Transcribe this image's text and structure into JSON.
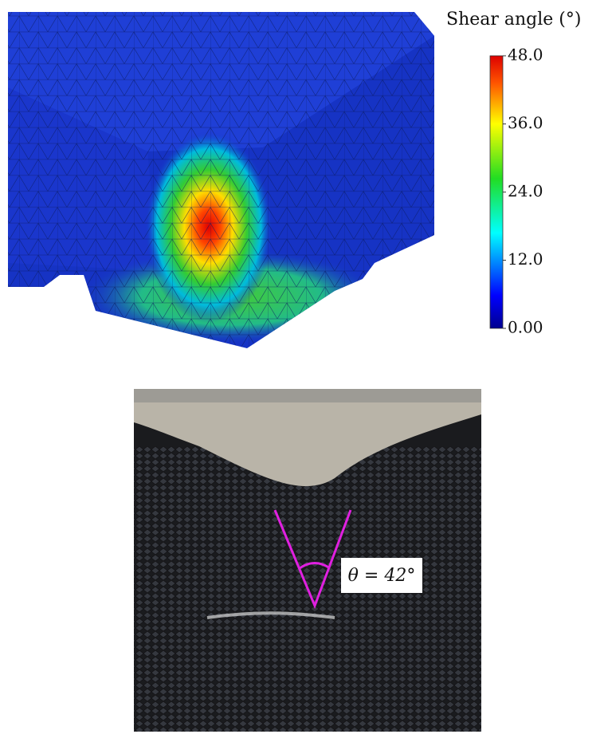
{
  "colorbar": {
    "title": "Shear angle (°)",
    "range": [
      0,
      48
    ],
    "ticks": [
      {
        "value": 48,
        "label": "48.0"
      },
      {
        "value": 36,
        "label": "36.0"
      },
      {
        "value": 24,
        "label": "24.0"
      },
      {
        "value": 12,
        "label": "12.0"
      },
      {
        "value": 0,
        "label": "0.00"
      }
    ]
  },
  "photo": {
    "annotation": "θ = 42°"
  }
}
